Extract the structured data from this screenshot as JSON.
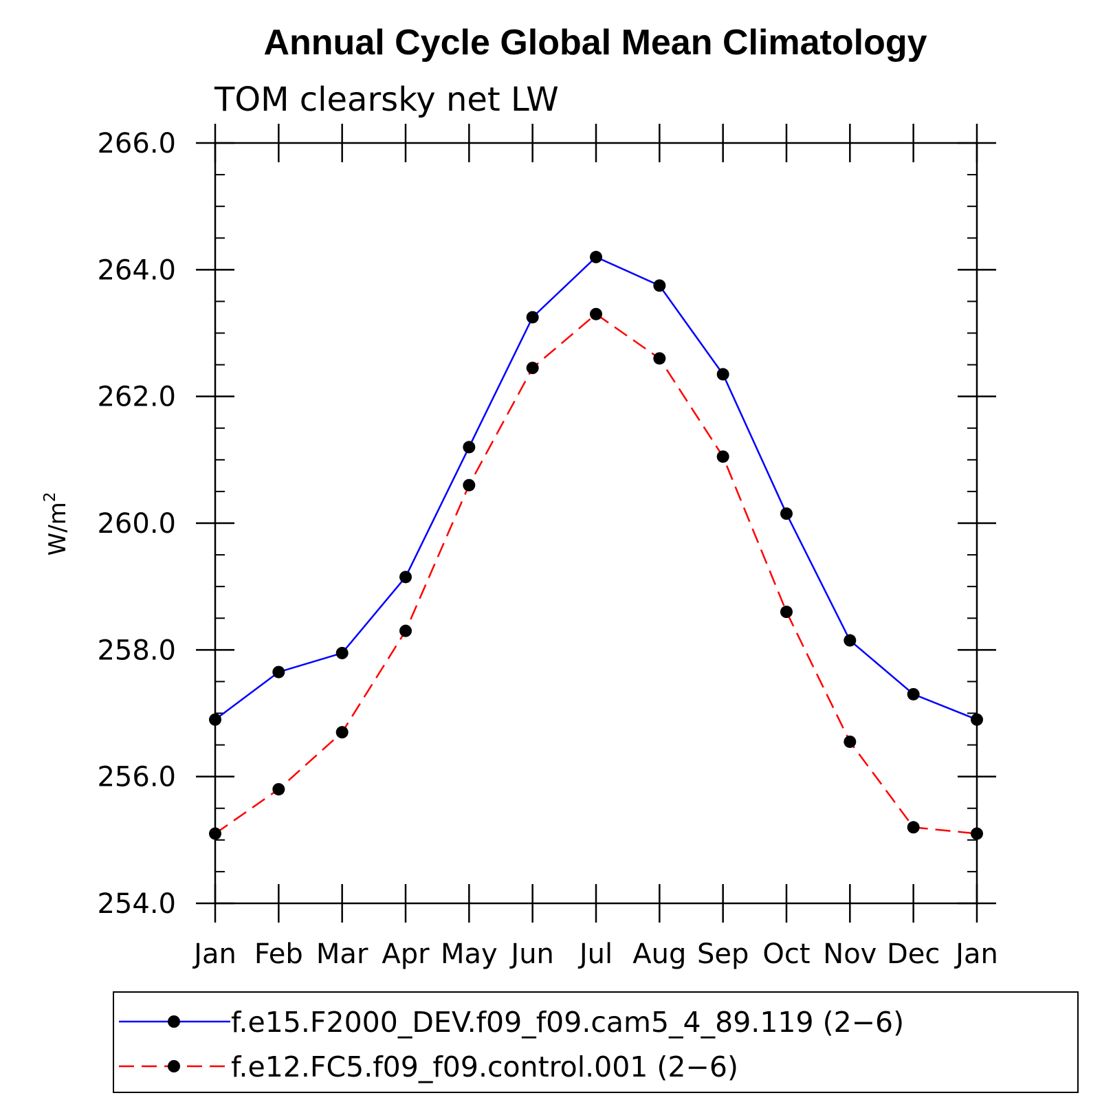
{
  "chart_data": {
    "type": "line",
    "title": "Annual Cycle Global Mean Climatology",
    "subtitle": "TOM clearsky net LW",
    "ylabel": "W/m",
    "ylabel_sup": "2",
    "xlabel": "",
    "categories": [
      "Jan",
      "Feb",
      "Mar",
      "Apr",
      "May",
      "Jun",
      "Jul",
      "Aug",
      "Sep",
      "Oct",
      "Nov",
      "Dec",
      "Jan"
    ],
    "ylim": [
      254.0,
      266.0
    ],
    "yticks": [
      "254.0",
      "256.0",
      "258.0",
      "260.0",
      "262.0",
      "264.0",
      "266.0"
    ],
    "grid": false,
    "legend_position": "bottom",
    "series": [
      {
        "name": "f.e15.F2000_DEV.f09_f09.cam5_4_89.119 (2−6)",
        "color": "#0000ff",
        "dash": "solid",
        "marker": "circle",
        "values": [
          256.9,
          257.65,
          257.95,
          259.15,
          261.2,
          263.25,
          264.2,
          263.75,
          262.35,
          260.15,
          258.15,
          257.3,
          256.9
        ]
      },
      {
        "name": "f.e12.FC5.f09_f09.control.001 (2−6)",
        "color": "#ff0000",
        "dash": "dashed",
        "marker": "circle",
        "values": [
          255.1,
          255.8,
          256.7,
          258.3,
          260.6,
          262.45,
          263.3,
          262.6,
          261.05,
          258.6,
          256.55,
          255.2,
          255.1
        ]
      }
    ]
  }
}
